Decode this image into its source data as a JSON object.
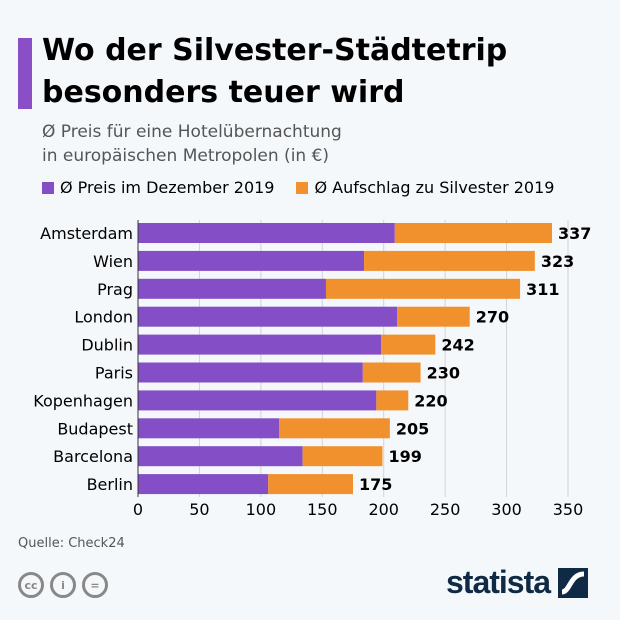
{
  "header": {
    "title": "Wo der Silvester-Städtetrip besonders teuer wird",
    "subtitle_line1": "Ø Preis für eine Hotelübernachtung",
    "subtitle_line2": "in europäischen Metropolen (in €)"
  },
  "footer": {
    "source": "Quelle: Check24",
    "brand": "statista",
    "license_icons": [
      "cc-icon",
      "by-icon",
      "nd-icon"
    ]
  },
  "colors": {
    "base": "#844fc6",
    "surcharge": "#f0912d",
    "accent": "#8a4fc6",
    "brand": "#0f2a44"
  },
  "chart_data": {
    "type": "bar",
    "orientation": "horizontal",
    "stacked": true,
    "categories": [
      "Amsterdam",
      "Wien",
      "Prag",
      "London",
      "Dublin",
      "Paris",
      "Kopenhagen",
      "Budapest",
      "Barcelona",
      "Berlin"
    ],
    "series": [
      {
        "name": "Ø Preis im Dezember 2019",
        "values": [
          209,
          184,
          153,
          211,
          198,
          183,
          194,
          115,
          134,
          106
        ]
      },
      {
        "name": "Ø Aufschlag zu Silvester 2019",
        "values": [
          128,
          139,
          158,
          59,
          44,
          47,
          26,
          90,
          65,
          69
        ]
      }
    ],
    "totals": [
      337,
      323,
      311,
      270,
      242,
      230,
      220,
      205,
      199,
      175
    ],
    "xlim": [
      0,
      350
    ],
    "xticks": [
      "0",
      "50",
      "100",
      "150",
      "200",
      "250",
      "300",
      "350"
    ],
    "grid": true,
    "legend_position": "top"
  }
}
